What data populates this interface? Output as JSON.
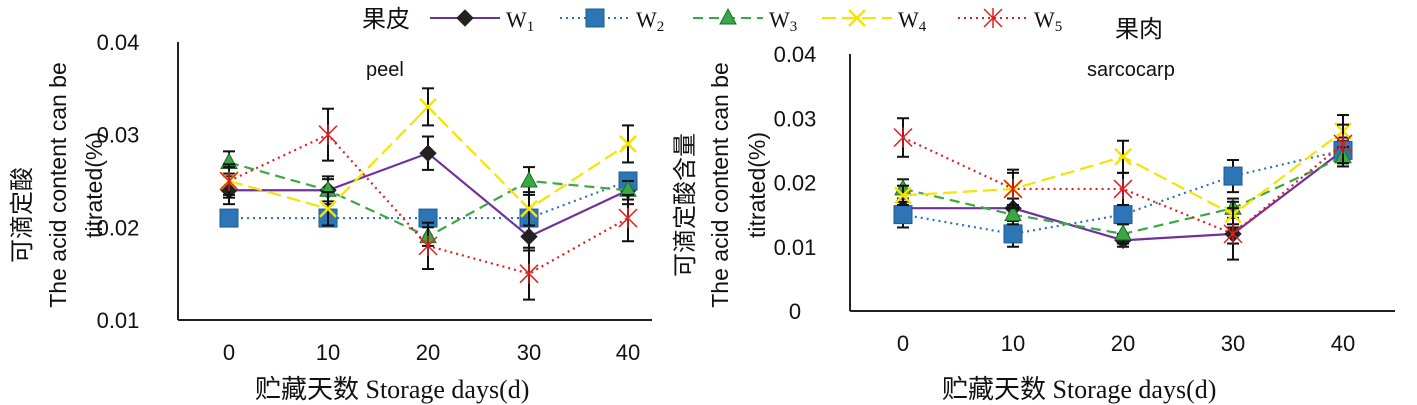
{
  "legend": {
    "items": [
      {
        "base": "W",
        "sub": "1",
        "color": "#7030a0",
        "marker": "diamond",
        "dash": "solid"
      },
      {
        "base": "W",
        "sub": "2",
        "color": "#2e75b6",
        "marker": "square",
        "dash": "dot"
      },
      {
        "base": "W",
        "sub": "3",
        "color": "#3aa845",
        "marker": "triangle",
        "dash": "dash"
      },
      {
        "base": "W",
        "sub": "4",
        "color": "#f5e400",
        "marker": "x",
        "dash": "longdash"
      },
      {
        "base": "W",
        "sub": "5",
        "color": "#e02020",
        "marker": "star",
        "dash": "dot"
      }
    ]
  },
  "chart_data": [
    {
      "type": "line",
      "title_cn": "果皮",
      "title_en": "peel",
      "ylabel_cn": "可滴定酸",
      "ylabel_en1": "The acid content can be",
      "ylabel_en2": "titrated(%)",
      "xlabel": "贮藏天数 Storage days(d)",
      "x": [
        0,
        10,
        20,
        30,
        40
      ],
      "xticks": [
        "0",
        "10",
        "20",
        "30",
        "40"
      ],
      "ylim": [
        0.01,
        0.04
      ],
      "yticks": [
        "0.01",
        "0.02",
        "0.03",
        "0.04"
      ],
      "series": [
        {
          "name": "W1",
          "values": [
            0.024,
            0.024,
            0.028,
            0.019,
            0.024
          ],
          "err": [
            0.0015,
            0.0015,
            0.0018,
            0.0015,
            0.0015
          ]
        },
        {
          "name": "W2",
          "values": [
            0.021,
            0.021,
            0.021,
            0.021,
            0.025
          ],
          "err": [
            0,
            0,
            0,
            0,
            0
          ]
        },
        {
          "name": "W3",
          "values": [
            0.027,
            0.024,
            0.019,
            0.025,
            0.024
          ],
          "err": [
            0.0012,
            0.0012,
            0.001,
            0.0015,
            0.001
          ]
        },
        {
          "name": "W4",
          "values": [
            0.025,
            0.022,
            0.033,
            0.022,
            0.029
          ],
          "err": [
            0.0018,
            0.0018,
            0.002,
            0.0018,
            0.002
          ]
        },
        {
          "name": "W5",
          "values": [
            0.025,
            0.03,
            0.018,
            0.015,
            0.021
          ],
          "err": [
            0.0015,
            0.0028,
            0.0025,
            0.0028,
            0.0025
          ]
        }
      ]
    },
    {
      "type": "line",
      "title_cn": "果肉",
      "title_en": "sarcocarp",
      "ylabel_cn": "可滴定酸含量",
      "ylabel_en1": "The acid content can be",
      "ylabel_en2": "titrated(%)",
      "xlabel": "贮藏天数 Storage days(d)",
      "x": [
        0,
        10,
        20,
        30,
        40
      ],
      "xticks": [
        "0",
        "10",
        "20",
        "30",
        "40"
      ],
      "ylim": [
        0,
        0.04
      ],
      "yticks": [
        "0",
        "0.01",
        "0.02",
        "0.03",
        "0.04"
      ],
      "series": [
        {
          "name": "W1",
          "values": [
            0.016,
            0.016,
            0.011,
            0.012,
            0.025
          ],
          "err": [
            0.0015,
            0.0015,
            0.001,
            0.0015,
            0.0015
          ]
        },
        {
          "name": "W2",
          "values": [
            0.015,
            0.012,
            0.015,
            0.021,
            0.025
          ],
          "err": [
            0.002,
            0.002,
            0.0015,
            0.0025,
            0.002
          ]
        },
        {
          "name": "W3",
          "values": [
            0.019,
            0.015,
            0.012,
            0.016,
            0.024
          ],
          "err": [
            0.0015,
            0.0015,
            0.0015,
            0.0015,
            0.0015
          ]
        },
        {
          "name": "W4",
          "values": [
            0.018,
            0.019,
            0.024,
            0.015,
            0.028
          ],
          "err": [
            0.0015,
            0.0025,
            0.0025,
            0.002,
            0.0025
          ]
        },
        {
          "name": "W5",
          "values": [
            0.027,
            0.019,
            0.019,
            0.012,
            0.026
          ],
          "err": [
            0.003,
            0.003,
            0.0025,
            0.004,
            0.003
          ]
        }
      ]
    }
  ]
}
